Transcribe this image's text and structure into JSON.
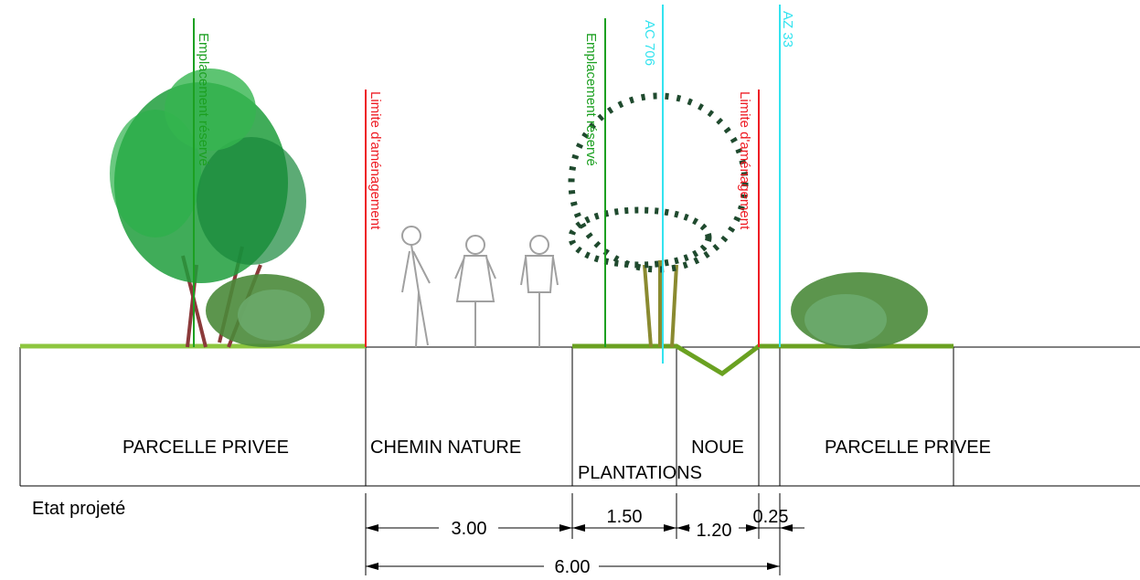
{
  "vertical_labels": [
    "Emplacement réservé",
    "Limite d'aménagement",
    "Emplacement réservé",
    "AC 706",
    "Limite d'aménagement",
    "AZ 33"
  ],
  "sections": [
    "PARCELLE PRIVEE",
    "CHEMIN NATURE",
    "PLANTATIONS",
    "NOUE",
    "PARCELLE PRIVEE"
  ],
  "caption": "Etat projeté",
  "dimensions": [
    "3.00",
    "1.50",
    "1.20",
    "0.25",
    "6.00"
  ]
}
